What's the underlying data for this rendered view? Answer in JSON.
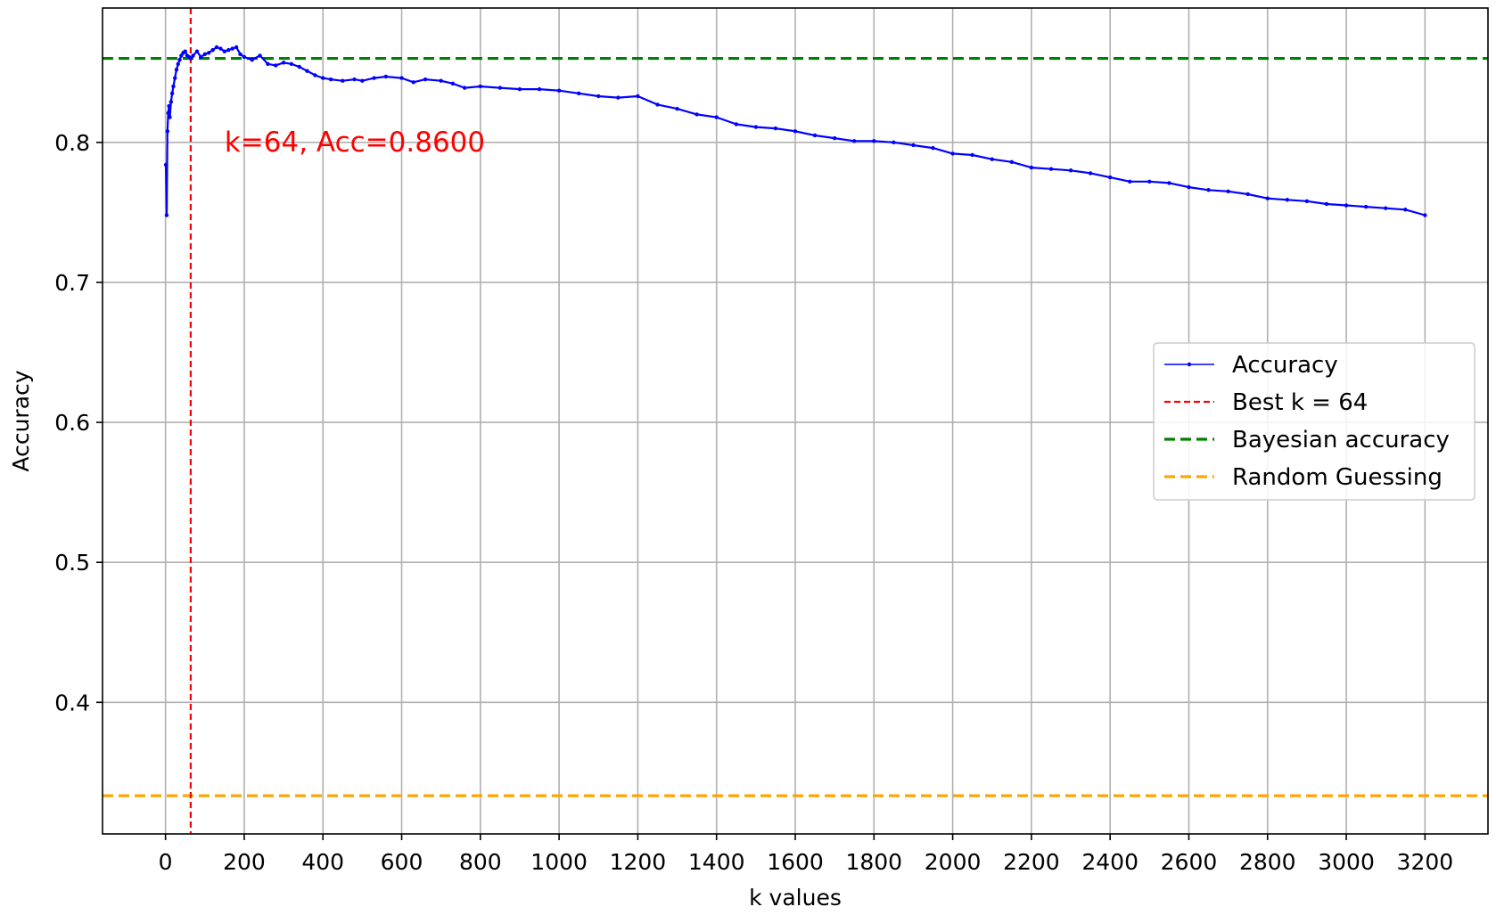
{
  "chart_data": {
    "type": "line",
    "title": "",
    "xlabel": "k values",
    "ylabel": "Accuracy",
    "xlim": [
      -160,
      3360
    ],
    "ylim": [
      0.306,
      0.896
    ],
    "xticks": [
      0,
      200,
      400,
      600,
      800,
      1000,
      1200,
      1400,
      1600,
      1800,
      2000,
      2200,
      2400,
      2600,
      2800,
      3000,
      3200
    ],
    "yticks": [
      0.4,
      0.5,
      0.6,
      0.7,
      0.8
    ],
    "ytick_labels": [
      "0.4",
      "0.5",
      "0.6",
      "0.7",
      "0.8"
    ],
    "grid": true,
    "legend_position": "center-right",
    "series": [
      {
        "name": "Accuracy",
        "color": "#0000ff",
        "marker": "point",
        "x": [
          1,
          3,
          5,
          7,
          9,
          11,
          14,
          17,
          20,
          24,
          28,
          32,
          36,
          40,
          45,
          50,
          55,
          60,
          64,
          70,
          80,
          90,
          100,
          110,
          120,
          130,
          140,
          150,
          160,
          170,
          180,
          190,
          200,
          220,
          240,
          260,
          280,
          300,
          320,
          340,
          360,
          380,
          400,
          420,
          450,
          480,
          500,
          530,
          560,
          600,
          630,
          660,
          700,
          730,
          760,
          800,
          850,
          900,
          950,
          1000,
          1050,
          1100,
          1150,
          1200,
          1250,
          1300,
          1350,
          1400,
          1450,
          1500,
          1550,
          1600,
          1650,
          1700,
          1750,
          1800,
          1850,
          1900,
          1950,
          2000,
          2050,
          2100,
          2150,
          2200,
          2250,
          2300,
          2350,
          2400,
          2450,
          2500,
          2550,
          2600,
          2650,
          2700,
          2750,
          2800,
          2850,
          2900,
          2950,
          3000,
          3050,
          3100,
          3150,
          3200
        ],
        "values": [
          0.784,
          0.748,
          0.808,
          0.821,
          0.826,
          0.818,
          0.829,
          0.835,
          0.84,
          0.846,
          0.852,
          0.856,
          0.859,
          0.862,
          0.864,
          0.865,
          0.862,
          0.861,
          0.86,
          0.862,
          0.865,
          0.861,
          0.863,
          0.864,
          0.866,
          0.868,
          0.867,
          0.865,
          0.866,
          0.867,
          0.868,
          0.863,
          0.861,
          0.859,
          0.862,
          0.856,
          0.855,
          0.857,
          0.856,
          0.854,
          0.851,
          0.848,
          0.846,
          0.845,
          0.844,
          0.845,
          0.844,
          0.846,
          0.847,
          0.846,
          0.843,
          0.845,
          0.844,
          0.842,
          0.839,
          0.84,
          0.839,
          0.838,
          0.838,
          0.837,
          0.835,
          0.833,
          0.832,
          0.833,
          0.827,
          0.824,
          0.82,
          0.818,
          0.813,
          0.811,
          0.81,
          0.808,
          0.805,
          0.803,
          0.801,
          0.801,
          0.8,
          0.798,
          0.796,
          0.792,
          0.791,
          0.788,
          0.786,
          0.782,
          0.781,
          0.78,
          0.778,
          0.775,
          0.772,
          0.772,
          0.771,
          0.768,
          0.766,
          0.765,
          0.763,
          0.76,
          0.759,
          0.758,
          0.756,
          0.755,
          0.754,
          0.753,
          0.752,
          0.748
        ]
      },
      {
        "name": "Best k = 64",
        "color": "#ff0000",
        "style": "vertical-dashed",
        "x_value": 64
      },
      {
        "name": "Bayesian accuracy",
        "color": "#008000",
        "style": "horizontal-dashed",
        "y_value": 0.86
      },
      {
        "name": "Random Guessing",
        "color": "#ffa500",
        "style": "horizontal-dashed",
        "y_value": 0.3333
      }
    ],
    "annotations": [
      {
        "text": "k=64, Acc=0.8600",
        "x": 150,
        "y": 0.8,
        "color": "#ff0000"
      }
    ]
  }
}
